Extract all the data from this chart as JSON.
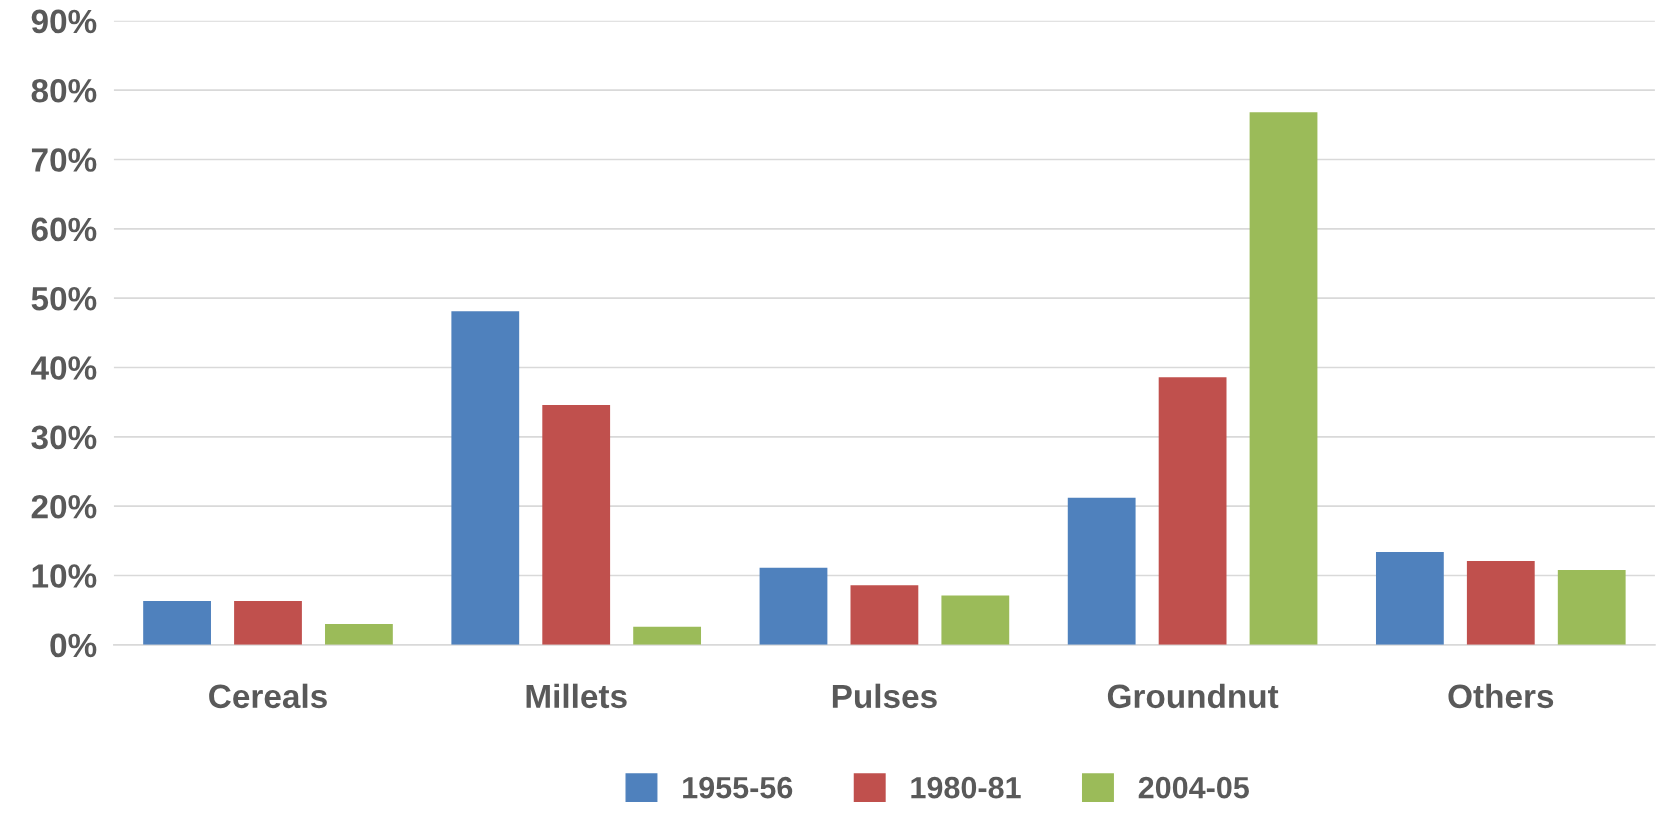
{
  "chart_data": {
    "type": "bar",
    "categories": [
      "Cereals",
      "Millets",
      "Pulses",
      "Groundnut",
      "Others"
    ],
    "series": [
      {
        "name": "1955-56",
        "color": "#4f81bd",
        "values": [
          6.3,
          48.1,
          11.1,
          21.2,
          13.4
        ]
      },
      {
        "name": "1980-81",
        "color": "#c0504d",
        "values": [
          6.3,
          34.6,
          8.6,
          38.6,
          12.1
        ]
      },
      {
        "name": "2004-05",
        "color": "#9bbb59",
        "values": [
          3.0,
          2.6,
          7.1,
          76.8,
          10.8
        ]
      }
    ],
    "ylim": [
      0,
      90
    ],
    "yticks": [
      {
        "value": 0,
        "label": "0%"
      },
      {
        "value": 10,
        "label": "10%"
      },
      {
        "value": 20,
        "label": "20%"
      },
      {
        "value": 30,
        "label": "30%"
      },
      {
        "value": 40,
        "label": "40%"
      },
      {
        "value": 50,
        "label": "50%"
      },
      {
        "value": 60,
        "label": "60%"
      },
      {
        "value": 70,
        "label": "70%"
      },
      {
        "value": 80,
        "label": "80%"
      },
      {
        "value": 90,
        "label": "90%"
      }
    ],
    "grid": "y",
    "legend": "bottom"
  }
}
